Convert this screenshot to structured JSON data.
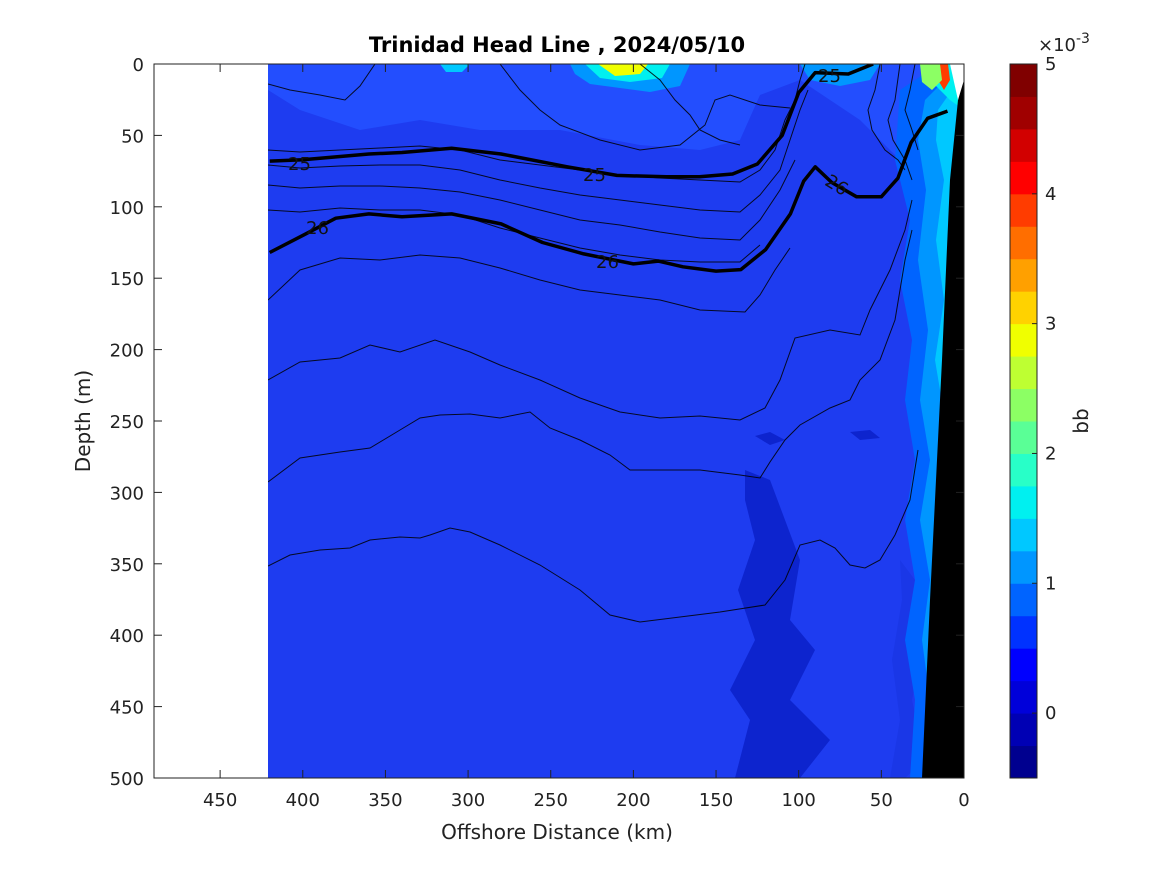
{
  "chart_data": {
    "type": "contour",
    "title": "Trinidad Head Line , 2024/05/10",
    "xlabel": "Offshore Distance (km)",
    "ylabel": "Depth (m)",
    "xlim": [
      490,
      0
    ],
    "ylim": [
      0,
      500
    ],
    "x_reversed": true,
    "y_reversed": true,
    "xticks": [
      450,
      400,
      350,
      300,
      250,
      200,
      150,
      100,
      50,
      0
    ],
    "yticks": [
      0,
      50,
      100,
      150,
      200,
      250,
      300,
      350,
      400,
      450,
      500
    ],
    "data_extent_km": [
      420,
      0
    ],
    "colorbar": {
      "label": "bb",
      "exponent_label": "×10",
      "exponent_power": "-3",
      "range": [
        -0.5,
        5
      ],
      "ticks": [
        0,
        1,
        2,
        3,
        4,
        5
      ],
      "colormap": [
        "#00008f",
        "#0000b4",
        "#0000da",
        "#0000ff",
        "#0032ff",
        "#0064ff",
        "#0096ff",
        "#00c8ff",
        "#00f0f0",
        "#28ffc8",
        "#5aff96",
        "#8cff64",
        "#beff32",
        "#f0ff00",
        "#ffd200",
        "#ffa000",
        "#ff6e00",
        "#ff3c00",
        "#ff0000",
        "#d20000",
        "#a00000",
        "#800000"
      ]
    },
    "background_level_color": "#1e3cf0",
    "highlights": [
      {
        "feature": "surface bloom",
        "x_km": [
          210,
          190
        ],
        "depth_m": [
          0,
          8
        ],
        "value_approx": 3.2
      },
      {
        "feature": "nearshore bloom",
        "x_km": [
          12,
          5
        ],
        "depth_m": [
          0,
          20
        ],
        "value_approx": 4.5
      },
      {
        "feature": "nearshore band",
        "x_km": [
          30,
          12
        ],
        "depth_m": [
          0,
          500
        ],
        "value_approx": 1.2
      }
    ],
    "density_contours": [
      {
        "label": "25",
        "points": [
          [
            420,
            68
          ],
          [
            400,
            67
          ],
          [
            360,
            63
          ],
          [
            340,
            62
          ],
          [
            310,
            59
          ],
          [
            280,
            63
          ],
          [
            240,
            72
          ],
          [
            210,
            78
          ],
          [
            180,
            79
          ],
          [
            160,
            79
          ],
          [
            140,
            77
          ],
          [
            125,
            70
          ],
          [
            110,
            50
          ],
          [
            100,
            20
          ],
          [
            90,
            6
          ],
          [
            70,
            7
          ],
          [
            55,
            0
          ]
        ]
      },
      {
        "label": "26",
        "points": [
          [
            420,
            132
          ],
          [
            400,
            120
          ],
          [
            380,
            108
          ],
          [
            360,
            105
          ],
          [
            340,
            107
          ],
          [
            310,
            105
          ],
          [
            280,
            112
          ],
          [
            255,
            125
          ],
          [
            230,
            133
          ],
          [
            200,
            140
          ],
          [
            185,
            138
          ],
          [
            170,
            142
          ],
          [
            150,
            145
          ],
          [
            135,
            144
          ],
          [
            120,
            130
          ],
          [
            105,
            105
          ],
          [
            97,
            82
          ],
          [
            90,
            72
          ],
          [
            80,
            83
          ],
          [
            65,
            93
          ],
          [
            50,
            93
          ],
          [
            40,
            80
          ],
          [
            32,
            55
          ],
          [
            22,
            38
          ],
          [
            10,
            33
          ]
        ]
      }
    ],
    "contour_labels_shown": [
      "25",
      "25",
      "25",
      "26",
      "26",
      "26"
    ],
    "bathymetry_fill": "#000000"
  }
}
